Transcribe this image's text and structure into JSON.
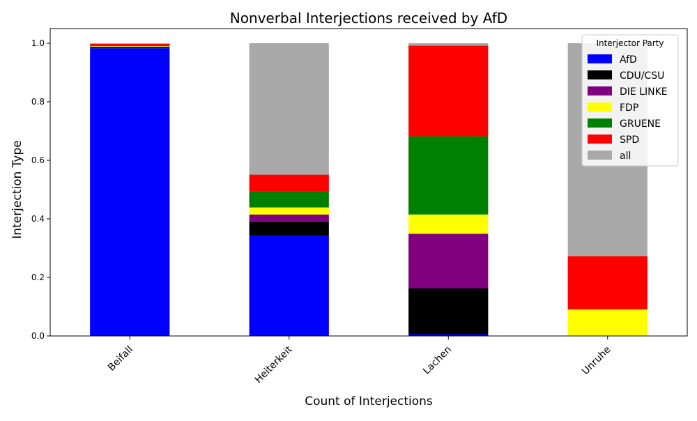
{
  "chart_data": {
    "type": "bar",
    "stacked": true,
    "title": "Nonverbal Interjections received by AfD",
    "xlabel": "Count of Interjections",
    "ylabel": "Interjection Type",
    "categories": [
      "Beifall",
      "Heiterkeit",
      "Lachen",
      "Unruhe"
    ],
    "ylim": [
      0,
      1.05
    ],
    "yticks": [
      "0.0",
      "0.2",
      "0.4",
      "0.6",
      "0.8",
      "1.0"
    ],
    "ytick_values": [
      0,
      0.2,
      0.4,
      0.6,
      0.8,
      1.0
    ],
    "grid": false,
    "legend": {
      "title": "Interjector Party",
      "position": "top-right"
    },
    "series": [
      {
        "name": "AfD",
        "color": "#0000ff",
        "values": [
          0.983,
          0.343,
          0.006,
          0.0
        ]
      },
      {
        "name": "CDU/CSU",
        "color": "#000000",
        "values": [
          0.003,
          0.048,
          0.157,
          0.0
        ]
      },
      {
        "name": "DIE LINKE",
        "color": "#800080",
        "values": [
          0.002,
          0.024,
          0.186,
          0.0
        ]
      },
      {
        "name": "FDP",
        "color": "#ffff00",
        "values": [
          0.002,
          0.024,
          0.066,
          0.091
        ]
      },
      {
        "name": "GRUENE",
        "color": "#008000",
        "values": [
          0.003,
          0.056,
          0.267,
          0.0
        ]
      },
      {
        "name": "SPD",
        "color": "#ff0000",
        "values": [
          0.005,
          0.056,
          0.31,
          0.182
        ]
      },
      {
        "name": "all",
        "color": "#a9a9a9",
        "values": [
          0.002,
          0.449,
          0.008,
          0.727
        ]
      }
    ]
  }
}
